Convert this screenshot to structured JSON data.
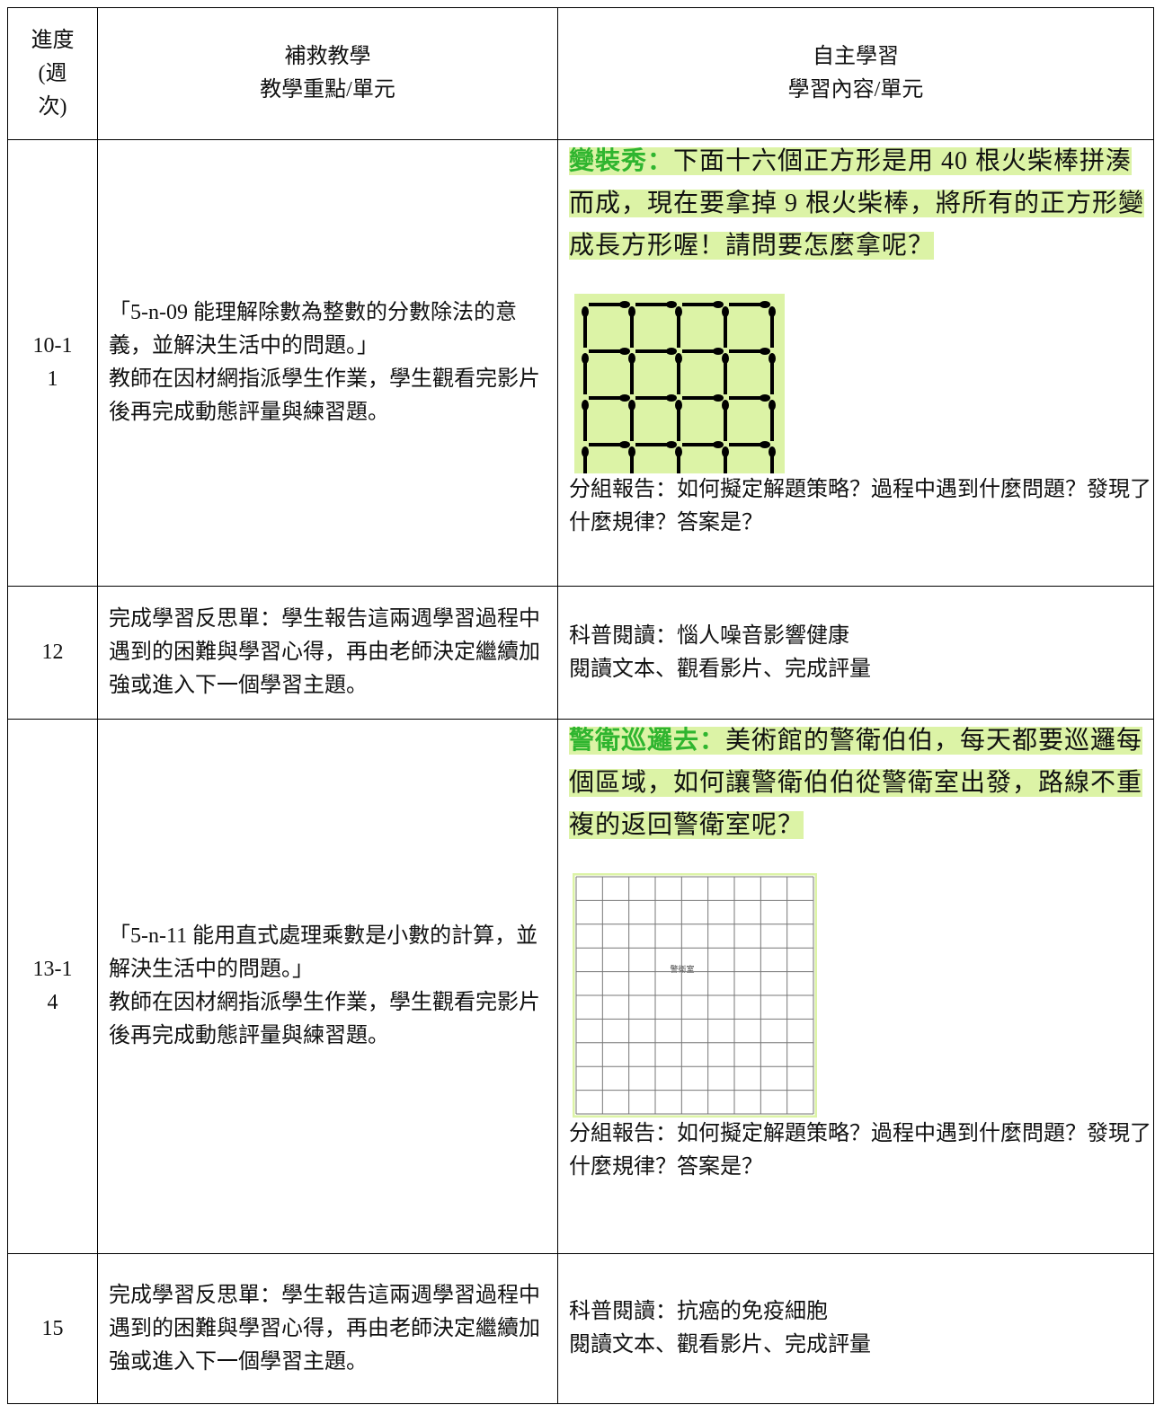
{
  "table": {
    "header": {
      "week": "進度(週次)",
      "remedial": [
        "補救教學",
        "教學重點/單元"
      ],
      "self_study": [
        "自主學習",
        "學習內容/單元"
      ]
    },
    "rows": [
      {
        "week": "10-11",
        "remedial": [
          "「5-n-09 能理解除數為整數的分數除法的意義，並解決生活中的問題。」",
          "教師在因材網指派學生作業，學生觀看完影片後再完成動態評量與練習題。"
        ],
        "self_study": {
          "highlight_title": "變裝秀：",
          "highlight_text": "下面十六個正方形是用 40 根火柴棒拼湊而成，現在要拿掉 9 根火柴棒，將所有的正方形變成長方形喔！請問要怎麼拿呢？",
          "report": "分組報告：如何擬定解題策略？過程中遇到什麼問題？發現了什麼規律？答案是？"
        }
      },
      {
        "week": "12",
        "remedial": [
          "完成學習反思單：學生報告這兩週學習過程中遇到的困難與學習心得，再由老師決定繼續加強或進入下一個學習主題。"
        ],
        "self_study": {
          "lines": [
            "科普閱讀：惱人噪音影響健康",
            "閱讀文本、觀看影片、完成評量"
          ]
        }
      },
      {
        "week": "13-14",
        "remedial": [
          "「5-n-11 能用直式處理乘數是小數的計算，並解決生活中的問題。」",
          "教師在因材網指派學生作業，學生觀看完影片後再完成動態評量與練習題。"
        ],
        "self_study": {
          "highlight_title": "警衛巡邏去：",
          "highlight_text": "美術館的警衛伯伯，每天都要巡邏每個區域，如何讓警衛伯伯從警衛室出發，路線不重複的返回警衛室呢？",
          "image_label": "警衛室",
          "report": "分組報告：如何擬定解題策略？過程中遇到什麼問題？發現了什麼規律？答案是？"
        }
      },
      {
        "week": "15",
        "remedial": [
          "完成學習反思單：學生報告這兩週學習過程中遇到的困難與學習心得，再由老師決定繼續加強或進入下一個學習主題。"
        ],
        "self_study": {
          "lines": [
            "科普閱讀：抗癌的免疫細胞",
            "閱讀文本、觀看影片、完成評量"
          ]
        }
      }
    ]
  }
}
